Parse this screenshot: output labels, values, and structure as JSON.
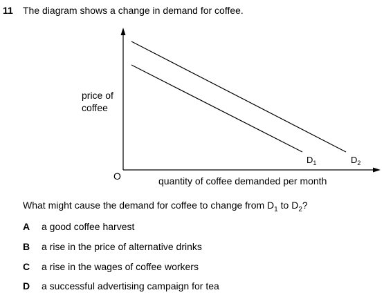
{
  "question": {
    "number": "11",
    "text": "The diagram shows a change in demand for coffee."
  },
  "diagram": {
    "y_axis_label_line1": "price of",
    "y_axis_label_line2": "coffee",
    "x_axis_label": "quantity of coffee demanded per month",
    "origin_label": "O",
    "curves": [
      {
        "name": "D",
        "subscript": "1"
      },
      {
        "name": "D",
        "subscript": "2"
      }
    ]
  },
  "prompt": {
    "prefix": "What might cause the demand for coffee to change from D",
    "sub1": "1",
    "middle": " to D",
    "sub2": "2",
    "suffix": "?"
  },
  "options": [
    {
      "letter": "A",
      "text": "a good coffee harvest"
    },
    {
      "letter": "B",
      "text": "a rise in the price of alternative drinks"
    },
    {
      "letter": "C",
      "text": "a rise in the wages of coffee workers"
    },
    {
      "letter": "D",
      "text": "a successful advertising campaign for tea"
    }
  ]
}
